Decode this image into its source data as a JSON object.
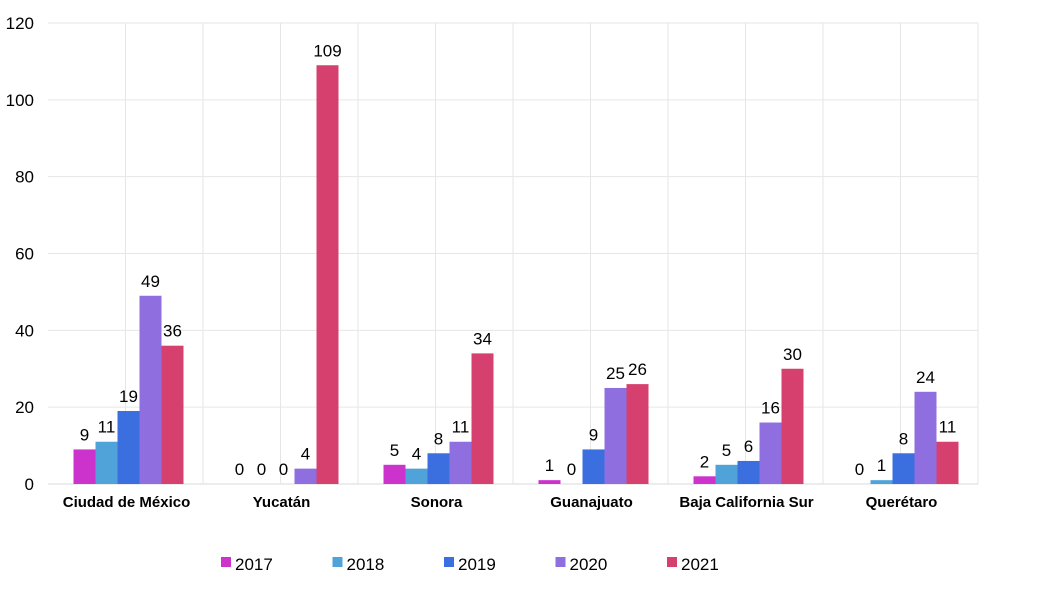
{
  "chart_data": {
    "type": "bar",
    "title": "",
    "xlabel": "",
    "ylabel": "",
    "ylim": [
      0,
      120
    ],
    "yticks": [
      0,
      20,
      40,
      60,
      80,
      100,
      120
    ],
    "grid": true,
    "legend_position": "bottom",
    "categories": [
      "Ciudad de México",
      "Yucatán",
      "Sonora",
      "Guanajuato",
      "Baja California Sur",
      "Querétaro"
    ],
    "series": [
      {
        "name": "2017",
        "color": "#cc33cc",
        "values": [
          9,
          0,
          5,
          1,
          2,
          0
        ]
      },
      {
        "name": "2018",
        "color": "#4fa3d9",
        "values": [
          11,
          0,
          4,
          0,
          5,
          1
        ]
      },
      {
        "name": "2019",
        "color": "#3b6fe0",
        "values": [
          19,
          0,
          8,
          9,
          6,
          8
        ]
      },
      {
        "name": "2020",
        "color": "#8f6fe0",
        "values": [
          49,
          4,
          11,
          25,
          16,
          24
        ]
      },
      {
        "name": "2021",
        "color": "#d6406f",
        "values": [
          36,
          109,
          34,
          26,
          30,
          11
        ]
      }
    ]
  }
}
